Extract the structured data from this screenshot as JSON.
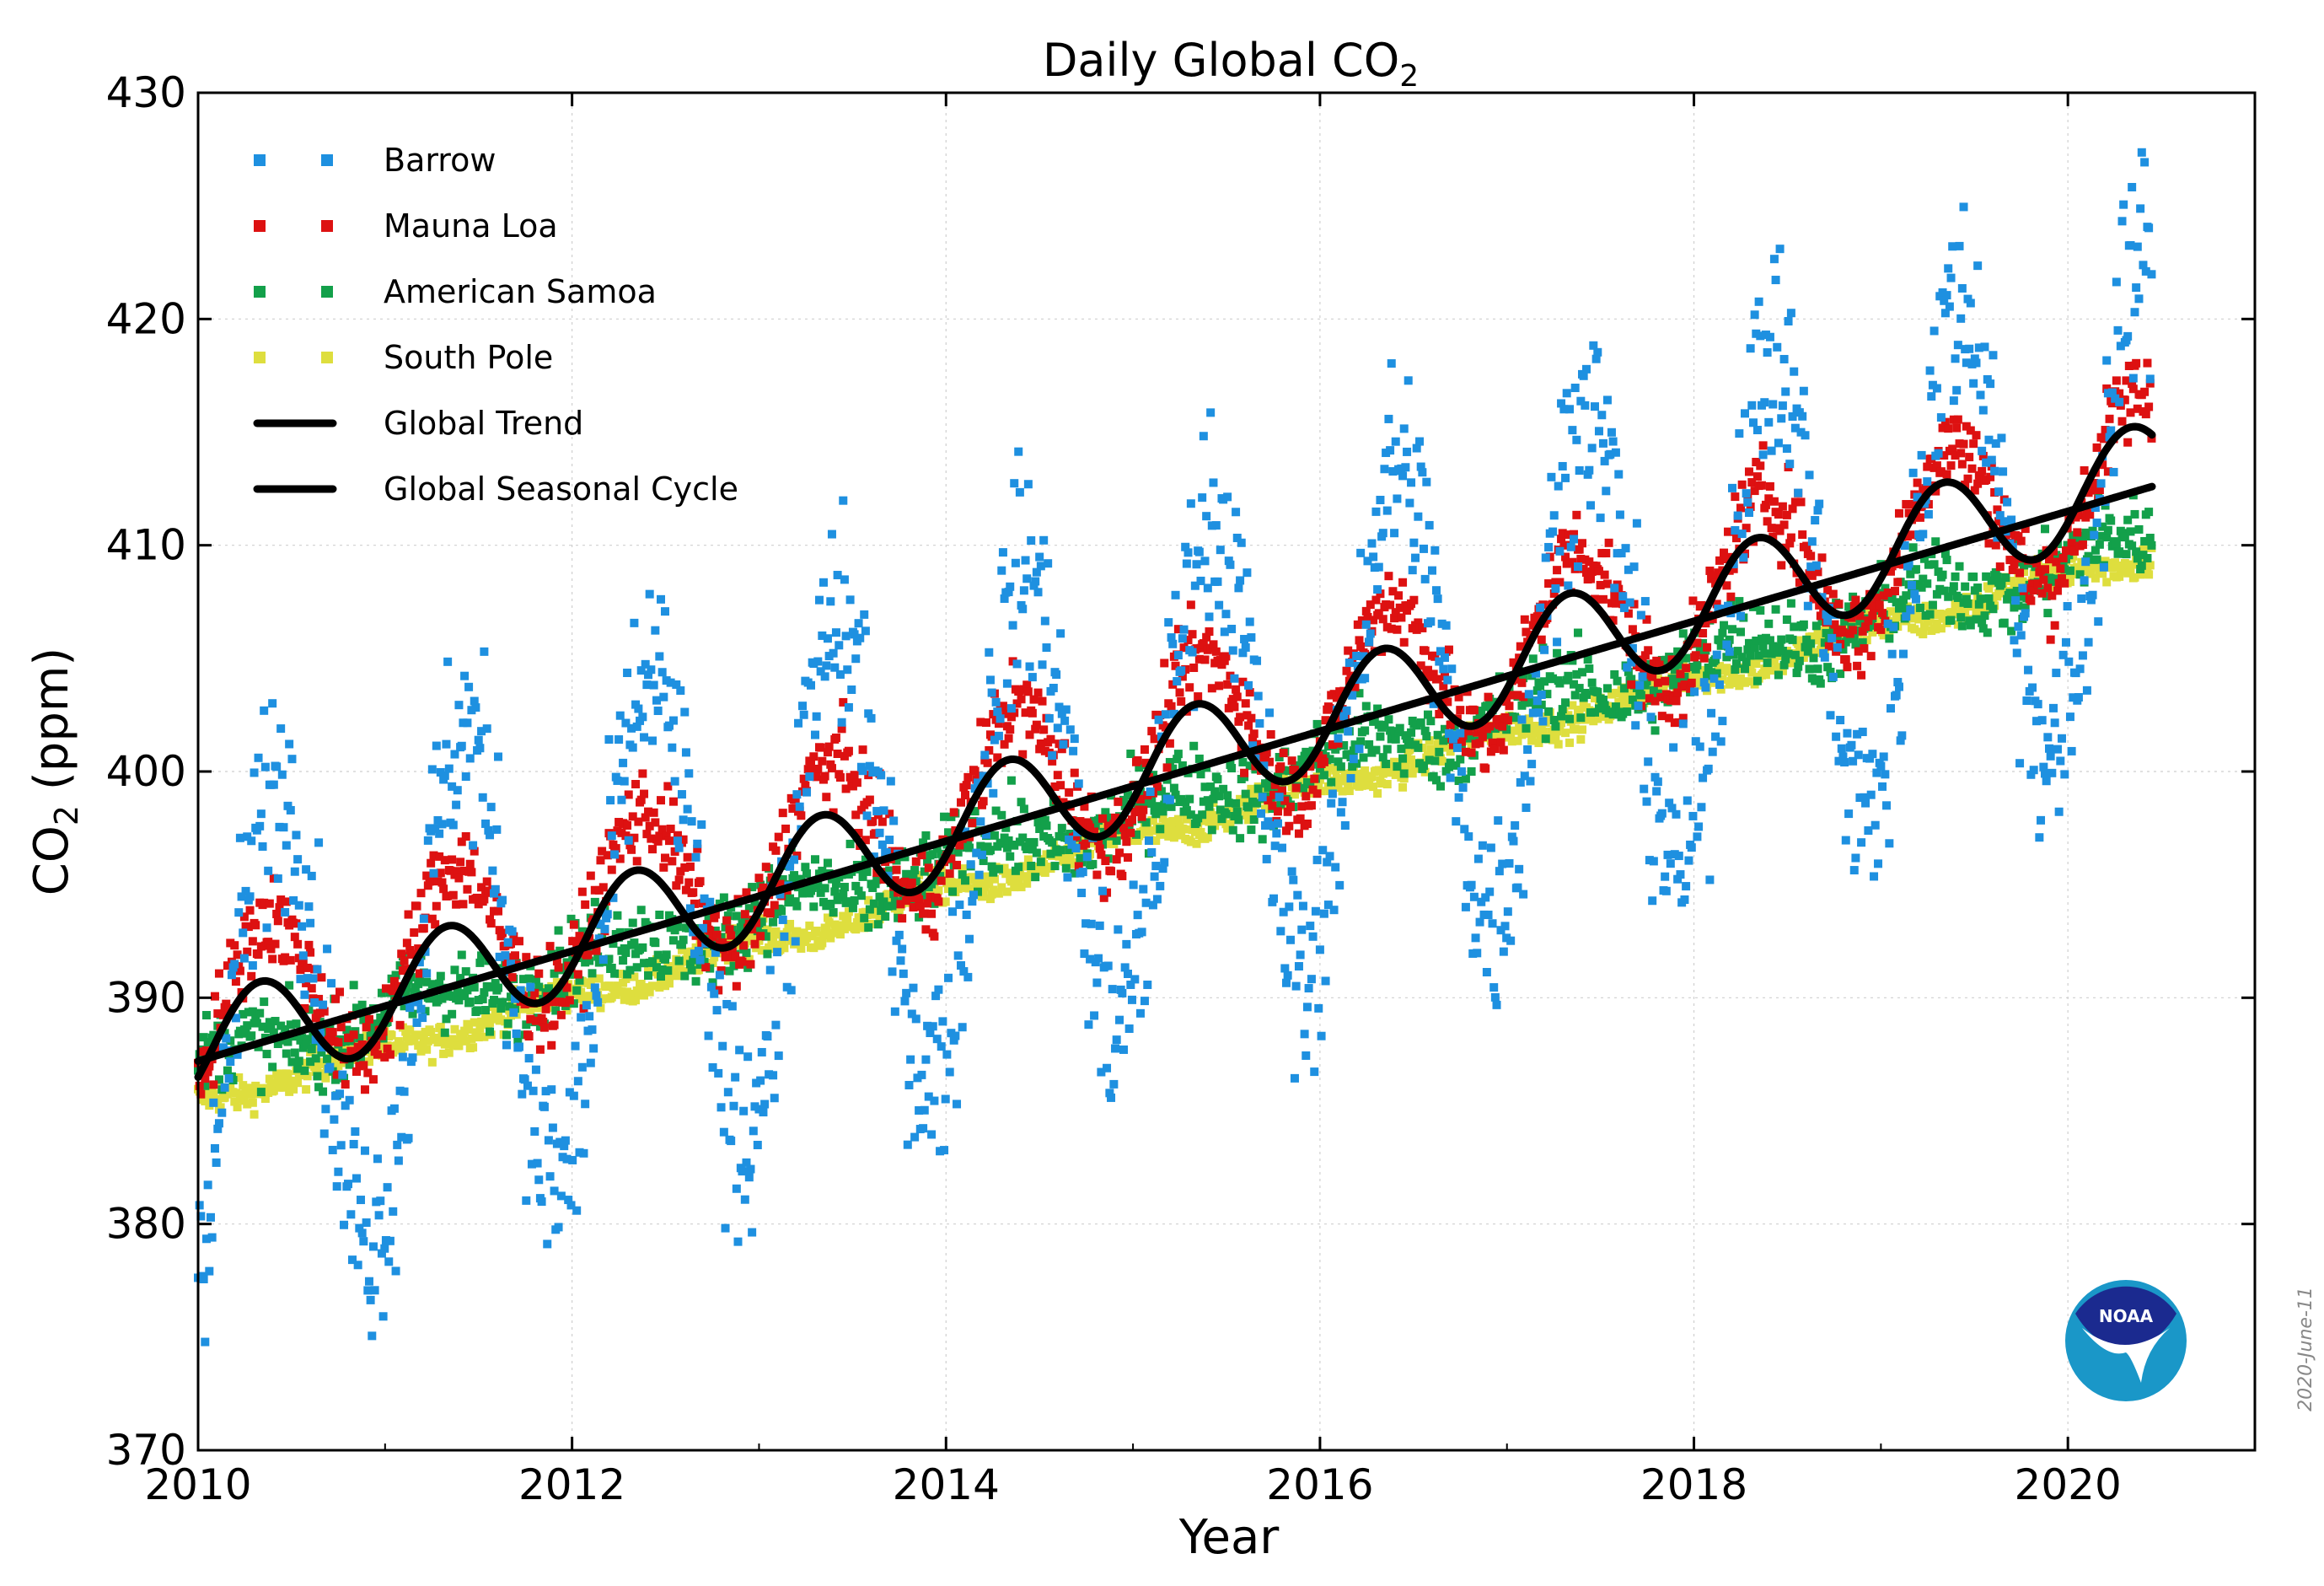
{
  "chart_data": {
    "type": "scatter",
    "title": "Daily Global CO",
    "title_subscript": "2",
    "xlabel": "Year",
    "ylabel_prefix": "CO",
    "ylabel_subscript": "2",
    "ylabel_suffix": " (ppm)",
    "xlim": [
      2010,
      2021
    ],
    "ylim": [
      370,
      430
    ],
    "xticks": [
      2010,
      2012,
      2014,
      2016,
      2018,
      2020
    ],
    "yticks": [
      370,
      380,
      390,
      400,
      410,
      420,
      430
    ],
    "grid": true,
    "legend_position": "top-left",
    "date_stamp": "2020-June-11",
    "logo_text": "NOAA",
    "series": [
      {
        "name": "Barrow",
        "kind": "points",
        "color": "#1e90e0",
        "start": 2010.0,
        "end": 2020.45,
        "base": 387.9,
        "slope": 2.36,
        "amp": 10.5,
        "phase": 0.42,
        "noise": 2.4,
        "step": 0.0075
      },
      {
        "name": "Mauna Loa",
        "kind": "points",
        "color": "#dd1111",
        "start": 2010.0,
        "end": 2020.45,
        "base": 389.0,
        "slope": 2.33,
        "amp": 3.6,
        "phase": 0.37,
        "noise": 1.0,
        "step": 0.0075
      },
      {
        "name": "American Samoa",
        "kind": "points",
        "color": "#13a04a",
        "start": 2010.0,
        "end": 2020.45,
        "base": 387.0,
        "slope": 2.22,
        "amp": 0.7,
        "phase": 0.2,
        "noise": 0.9,
        "step": 0.0075
      },
      {
        "name": "South Pole",
        "kind": "points",
        "color": "#dede3e",
        "start": 2010.0,
        "end": 2020.45,
        "base": 385.4,
        "slope": 2.33,
        "amp": 0.35,
        "phase": 0.85,
        "noise": 0.35,
        "step": 0.0075
      },
      {
        "name": "Global Trend",
        "kind": "line",
        "color": "#000000",
        "start": 2010.0,
        "end": 2020.45,
        "base": 387.2,
        "slope": 2.43,
        "amp": 0,
        "phase": 0
      },
      {
        "name": "Global Seasonal Cycle",
        "kind": "line",
        "color": "#000000",
        "start": 2010.0,
        "end": 2020.45,
        "base": 387.6,
        "slope": 2.45,
        "amp": 2.3,
        "phase": 0.33
      }
    ]
  }
}
